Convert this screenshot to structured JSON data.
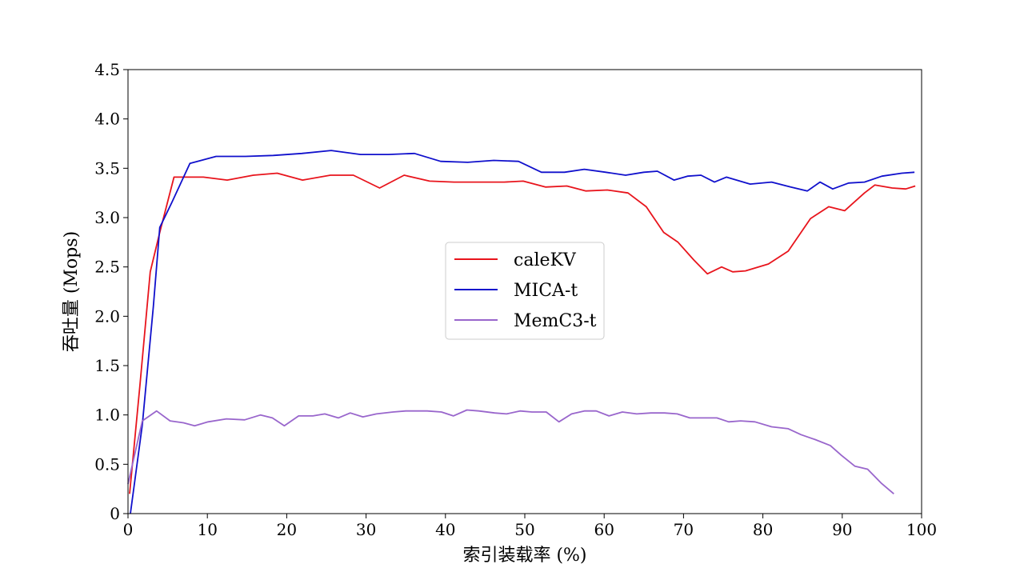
{
  "chart_data": {
    "type": "line",
    "title": "",
    "xlabel": "索引装载率 (%)",
    "ylabel": "吞吐量 (Mops)",
    "xlim": [
      0,
      100
    ],
    "ylim": [
      0,
      4.5
    ],
    "x_ticks": [
      0,
      10,
      20,
      30,
      40,
      50,
      60,
      70,
      80,
      90,
      100
    ],
    "x_tick_labels": [
      "0",
      "10",
      "20",
      "30",
      "40",
      "50",
      "60",
      "70",
      "80",
      "90",
      "100"
    ],
    "y_ticks": [
      0,
      0.5,
      1.0,
      1.5,
      2.0,
      2.5,
      3.0,
      3.5,
      4.0,
      4.5
    ],
    "y_tick_labels": [
      "0",
      "0.5",
      "1.0",
      "1.5",
      "2.0",
      "2.5",
      "3.0",
      "3.5",
      "4.0",
      "4.5"
    ],
    "grid": false,
    "legend_position": "center",
    "series": [
      {
        "name": "caleKV",
        "color": "#e8141c",
        "points": [
          [
            0.2,
            0.2
          ],
          [
            1.5,
            1.3
          ],
          [
            2.8,
            2.45
          ],
          [
            4.0,
            2.85
          ],
          [
            5.8,
            3.41
          ],
          [
            9.5,
            3.41
          ],
          [
            12.5,
            3.38
          ],
          [
            15.8,
            3.43
          ],
          [
            18.8,
            3.45
          ],
          [
            22.0,
            3.38
          ],
          [
            25.5,
            3.43
          ],
          [
            28.4,
            3.43
          ],
          [
            31.7,
            3.3
          ],
          [
            34.8,
            3.43
          ],
          [
            38.0,
            3.37
          ],
          [
            41.1,
            3.36
          ],
          [
            44.3,
            3.36
          ],
          [
            47.4,
            3.36
          ],
          [
            49.8,
            3.37
          ],
          [
            52.6,
            3.31
          ],
          [
            55.3,
            3.32
          ],
          [
            57.7,
            3.27
          ],
          [
            60.4,
            3.28
          ],
          [
            63.0,
            3.25
          ],
          [
            65.3,
            3.11
          ],
          [
            67.5,
            2.85
          ],
          [
            69.3,
            2.75
          ],
          [
            71.3,
            2.57
          ],
          [
            73.0,
            2.43
          ],
          [
            74.8,
            2.5
          ],
          [
            76.2,
            2.45
          ],
          [
            77.8,
            2.46
          ],
          [
            80.7,
            2.53
          ],
          [
            83.2,
            2.66
          ],
          [
            86.0,
            2.99
          ],
          [
            88.3,
            3.11
          ],
          [
            90.3,
            3.07
          ],
          [
            92.8,
            3.25
          ],
          [
            94.1,
            3.33
          ],
          [
            96.3,
            3.3
          ],
          [
            98.0,
            3.29
          ],
          [
            99.2,
            3.32
          ]
        ]
      },
      {
        "name": "MICA-t",
        "color": "#1010cc",
        "points": [
          [
            0.3,
            0.0
          ],
          [
            1.8,
            0.9
          ],
          [
            3.2,
            2.1
          ],
          [
            4.0,
            2.9
          ],
          [
            5.5,
            3.15
          ],
          [
            7.8,
            3.55
          ],
          [
            11.1,
            3.62
          ],
          [
            14.8,
            3.62
          ],
          [
            18.3,
            3.63
          ],
          [
            21.9,
            3.65
          ],
          [
            25.6,
            3.68
          ],
          [
            29.3,
            3.64
          ],
          [
            32.8,
            3.64
          ],
          [
            36.1,
            3.65
          ],
          [
            39.4,
            3.57
          ],
          [
            42.8,
            3.56
          ],
          [
            46.1,
            3.58
          ],
          [
            49.2,
            3.57
          ],
          [
            52.1,
            3.46
          ],
          [
            55.0,
            3.46
          ],
          [
            57.5,
            3.49
          ],
          [
            60.2,
            3.46
          ],
          [
            62.7,
            3.43
          ],
          [
            65.0,
            3.46
          ],
          [
            66.7,
            3.47
          ],
          [
            68.8,
            3.38
          ],
          [
            70.5,
            3.42
          ],
          [
            72.2,
            3.43
          ],
          [
            73.9,
            3.36
          ],
          [
            75.4,
            3.41
          ],
          [
            78.4,
            3.34
          ],
          [
            81.1,
            3.36
          ],
          [
            83.5,
            3.31
          ],
          [
            85.6,
            3.27
          ],
          [
            87.2,
            3.36
          ],
          [
            88.8,
            3.29
          ],
          [
            90.8,
            3.35
          ],
          [
            92.8,
            3.36
          ],
          [
            95.0,
            3.42
          ],
          [
            97.5,
            3.45
          ],
          [
            99.1,
            3.46
          ]
        ]
      },
      {
        "name": "MemC3-t",
        "color": "#9966cc",
        "points": [
          [
            0.0,
            0.3
          ],
          [
            1.8,
            0.94
          ],
          [
            3.6,
            1.04
          ],
          [
            5.3,
            0.94
          ],
          [
            7.0,
            0.92
          ],
          [
            8.4,
            0.89
          ],
          [
            10.1,
            0.93
          ],
          [
            12.4,
            0.96
          ],
          [
            14.7,
            0.95
          ],
          [
            16.7,
            1.0
          ],
          [
            18.2,
            0.97
          ],
          [
            19.7,
            0.89
          ],
          [
            21.5,
            0.99
          ],
          [
            23.3,
            0.99
          ],
          [
            24.8,
            1.01
          ],
          [
            26.5,
            0.97
          ],
          [
            28.0,
            1.02
          ],
          [
            29.6,
            0.98
          ],
          [
            31.3,
            1.01
          ],
          [
            33.4,
            1.03
          ],
          [
            35.0,
            1.04
          ],
          [
            37.7,
            1.04
          ],
          [
            39.5,
            1.03
          ],
          [
            41.0,
            0.99
          ],
          [
            42.7,
            1.05
          ],
          [
            44.2,
            1.04
          ],
          [
            46.2,
            1.02
          ],
          [
            47.7,
            1.01
          ],
          [
            49.4,
            1.04
          ],
          [
            50.9,
            1.03
          ],
          [
            52.7,
            1.03
          ],
          [
            54.3,
            0.93
          ],
          [
            55.9,
            1.01
          ],
          [
            57.5,
            1.04
          ],
          [
            59.0,
            1.04
          ],
          [
            60.6,
            0.99
          ],
          [
            62.3,
            1.03
          ],
          [
            64.1,
            1.01
          ],
          [
            65.9,
            1.02
          ],
          [
            67.6,
            1.02
          ],
          [
            69.2,
            1.01
          ],
          [
            70.8,
            0.97
          ],
          [
            72.5,
            0.97
          ],
          [
            74.2,
            0.97
          ],
          [
            75.7,
            0.93
          ],
          [
            77.2,
            0.94
          ],
          [
            79.0,
            0.93
          ],
          [
            81.1,
            0.88
          ],
          [
            83.2,
            0.86
          ],
          [
            84.8,
            0.8
          ],
          [
            86.6,
            0.75
          ],
          [
            88.5,
            0.69
          ],
          [
            89.9,
            0.59
          ],
          [
            91.6,
            0.48
          ],
          [
            93.2,
            0.45
          ],
          [
            94.9,
            0.31
          ],
          [
            96.5,
            0.2
          ]
        ]
      }
    ]
  }
}
